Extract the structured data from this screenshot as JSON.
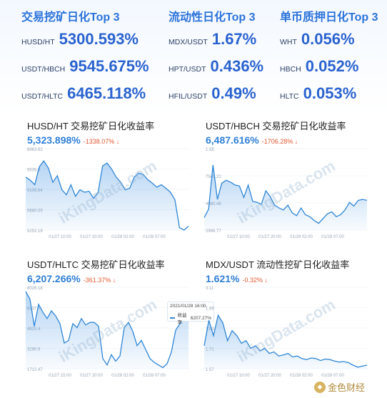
{
  "columns": [
    {
      "title": "交易挖矿日化Top 3",
      "rows": [
        {
          "pair": "HUSD/HT",
          "value": "5300.593%"
        },
        {
          "pair": "USDT/HBCH",
          "value": "9545.675%"
        },
        {
          "pair": "USDT/HLTC",
          "value": "6465.118%"
        }
      ]
    },
    {
      "title": "流动性日化Top 3",
      "rows": [
        {
          "pair": "MDX/USDT",
          "value": "1.67%"
        },
        {
          "pair": "HPT/USDT",
          "value": "0.436%"
        },
        {
          "pair": "HFIL/USDT",
          "value": "0.49%"
        }
      ]
    },
    {
      "title": "单币质押日化Top 3",
      "rows": [
        {
          "pair": "WHT",
          "value": "0.056%"
        },
        {
          "pair": "HBCH",
          "value": "0.052%"
        },
        {
          "pair": "HLTC",
          "value": "0.053%"
        }
      ]
    }
  ],
  "charts": [
    {
      "title": "HUSD/HT 交易挖矿日化收益率",
      "value": "5,323.898%",
      "change": "-1338.07% ↓",
      "watermark": "iKingData.com",
      "chart_data": {
        "type": "area",
        "y_ticks": [
          "6863.82",
          "6535.9",
          "6108.64",
          "5680.09",
          "5252.19"
        ],
        "x_ticks": [
          "01/27 10:00",
          "01/27 20:00",
          "01/28 02:00",
          "01/28 07:00"
        ],
        "ylim": [
          5252.19,
          6863.82
        ],
        "values": [
          6300,
          6240,
          6150,
          6500,
          6620,
          6480,
          6200,
          6330,
          6050,
          5950,
          6150,
          5920,
          6050,
          6000,
          6020,
          5880,
          5990,
          6520,
          6580,
          6460,
          6300,
          6200,
          6050,
          6080,
          6300,
          6380,
          6350,
          6250,
          6180,
          6100,
          6150,
          6080,
          6000,
          5850,
          5300,
          5252,
          5330
        ]
      }
    },
    {
      "title": "USDT/HBCH 交易挖矿日化收益率",
      "value": "6,487.616%",
      "change": "-1706.28% ↓",
      "watermark": "iKingData.com",
      "chart_data": {
        "type": "area",
        "y_ticks": [
          "1.5E",
          "7543.22",
          "4980.48",
          "2996.77"
        ],
        "x_ticks": [
          "01/27 10:00",
          "01/27 20:00",
          "01/28 02:00",
          "01/28 07:00"
        ],
        "ylim": [
          2996.77,
          11500
        ],
        "values": [
          4300,
          5200,
          9800,
          6200,
          7900,
          8200,
          8000,
          7700,
          7600,
          6400,
          7700,
          6000,
          5900,
          5700,
          7100,
          6500,
          5600,
          5300,
          5100,
          5600,
          4800,
          4500,
          5300,
          4600,
          4400,
          4000,
          3700,
          4200,
          4700,
          4900,
          4400,
          4600,
          5100,
          5900,
          5500,
          6100,
          6200,
          6100
        ]
      }
    },
    {
      "title": "USDT/HLTC 交易挖矿日化收益率",
      "value": "6,207.266%",
      "change": "-361.37% ↓",
      "watermark": "iKingData.com",
      "tooltip": {
        "date": "2021/01/28 16:00",
        "label": "收益率",
        "value": "6207.27%"
      },
      "chart_data": {
        "type": "area",
        "y_ticks": [
          "8026.18",
          "6437.7",
          "4825.4",
          "3290.9",
          "1712.47"
        ],
        "x_ticks": [
          "01/27 15:00",
          "01/27 20:00",
          "01/28 02:00",
          "01/28 07:00"
        ],
        "ylim": [
          1712.47,
          8026.18
        ],
        "values": [
          7700,
          7100,
          5000,
          6700,
          6100,
          5600,
          6200,
          5800,
          5200,
          3700,
          3900,
          5200,
          4900,
          5600,
          5100,
          5300,
          5300,
          5000,
          2500,
          2000,
          2800,
          2300,
          2700,
          4900,
          5300,
          4600,
          3500,
          3900,
          3200,
          2500,
          2200,
          2000,
          1800,
          2100,
          3000,
          4700,
          5200,
          5700,
          6200
        ]
      }
    },
    {
      "title": "MDX/USDT 流动性挖矿日化收益率",
      "value": "1.621%",
      "change": "-0.32% ↓",
      "watermark": "iKingData.com",
      "chart_data": {
        "type": "area",
        "y_ticks": [
          "3.11",
          "1.96",
          "1.83",
          "1.71",
          "1.57"
        ],
        "x_ticks": [
          "01/27 10:00",
          "01/27 20:00",
          "01/28 02:00",
          "01/28 07:00"
        ],
        "ylim": [
          1.55,
          3.15
        ],
        "values": [
          2.0,
          2.5,
          2.2,
          2.6,
          2.45,
          2.1,
          2.3,
          2.2,
          2.05,
          2.1,
          1.95,
          2.0,
          1.9,
          1.95,
          1.85,
          1.88,
          1.8,
          1.82,
          1.85,
          1.78,
          1.8,
          1.75,
          1.73,
          1.76,
          1.75,
          1.71,
          1.74,
          1.73,
          1.7,
          1.68,
          1.69,
          1.67,
          1.62,
          1.58,
          1.6,
          1.62
        ]
      }
    }
  ],
  "logo_text": "金色财经"
}
